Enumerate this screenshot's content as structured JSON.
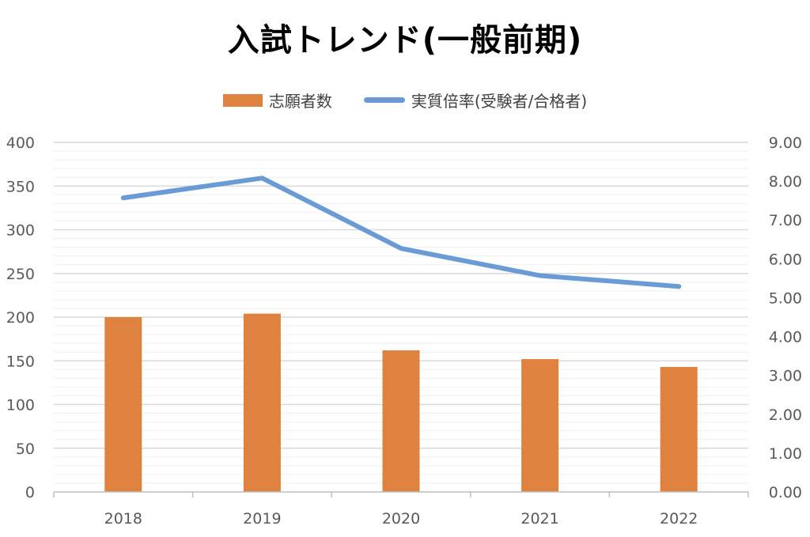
{
  "chart_data": {
    "type": "bar",
    "title": "入試トレンド(一般前期)",
    "categories": [
      "2018",
      "2019",
      "2020",
      "2021",
      "2022"
    ],
    "series": [
      {
        "name": "志願者数",
        "type": "bar",
        "axis": "left",
        "color": "#E0823F",
        "values": [
          200,
          204,
          162,
          152,
          143
        ]
      },
      {
        "name": "実質倍率(受験者/合格者)",
        "type": "line",
        "axis": "right",
        "color": "#6B9BD4",
        "values": [
          7.57,
          8.08,
          6.27,
          5.57,
          5.29
        ]
      }
    ],
    "y_left": {
      "min": 0,
      "max": 400,
      "step": 50,
      "ticks": [
        "0",
        "50",
        "100",
        "150",
        "200",
        "250",
        "300",
        "350",
        "400"
      ]
    },
    "y_right": {
      "min": 0,
      "max": 9,
      "step": 1,
      "ticks": [
        "0.00",
        "1.00",
        "2.00",
        "3.00",
        "4.00",
        "5.00",
        "6.00",
        "7.00",
        "8.00",
        "9.00"
      ]
    },
    "legend_position": "top",
    "grid": true
  }
}
